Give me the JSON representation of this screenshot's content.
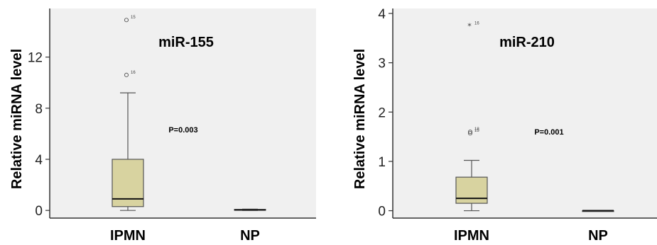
{
  "chart_data": [
    {
      "type": "box",
      "title": "miR-155",
      "ylabel": "Relative miRNA level",
      "annotation": "P=0.003",
      "ylim": [
        -0.6,
        15.8
      ],
      "yticks": [
        0,
        4,
        8,
        12
      ],
      "grid": false,
      "background": "#f0f0f0",
      "categories": [
        "IPMN",
        "NP"
      ],
      "boxes": [
        {
          "category": "IPMN",
          "min": 0.0,
          "q1": 0.3,
          "median": 0.9,
          "q3": 4.0,
          "max": 9.2,
          "outliers": [
            {
              "value": 14.9,
              "label": "15"
            },
            {
              "value": 10.6,
              "label": "16"
            }
          ]
        },
        {
          "category": "NP",
          "min": 0.0,
          "q1": 0.02,
          "median": 0.04,
          "q3": 0.08,
          "max": 0.1,
          "outliers": []
        }
      ]
    },
    {
      "type": "box",
      "title": "miR-210",
      "ylabel": "Relative miRNA level",
      "annotation": "P=0.001",
      "ylim": [
        -0.15,
        4.1
      ],
      "yticks": [
        0,
        1,
        2,
        3,
        4
      ],
      "grid": false,
      "background": "#f0f0f0",
      "categories": [
        "IPMN",
        "NP"
      ],
      "boxes": [
        {
          "category": "IPMN",
          "min": 0.0,
          "q1": 0.15,
          "median": 0.25,
          "q3": 0.68,
          "max": 1.02,
          "outliers": [
            {
              "value": 3.75,
              "label": "16",
              "marker": "star"
            },
            {
              "value": 1.6,
              "label": "18"
            },
            {
              "value": 1.57,
              "label": "15"
            }
          ]
        },
        {
          "category": "NP",
          "min": 0.0,
          "q1": 0.0,
          "median": 0.0,
          "q3": 0.0,
          "max": 0.0,
          "outliers": []
        }
      ]
    }
  ],
  "colors": {
    "box_fill": "#d8d3a0",
    "box_stroke": "#555555",
    "median": "#111111",
    "panel_bg": "#f0f0f0"
  }
}
